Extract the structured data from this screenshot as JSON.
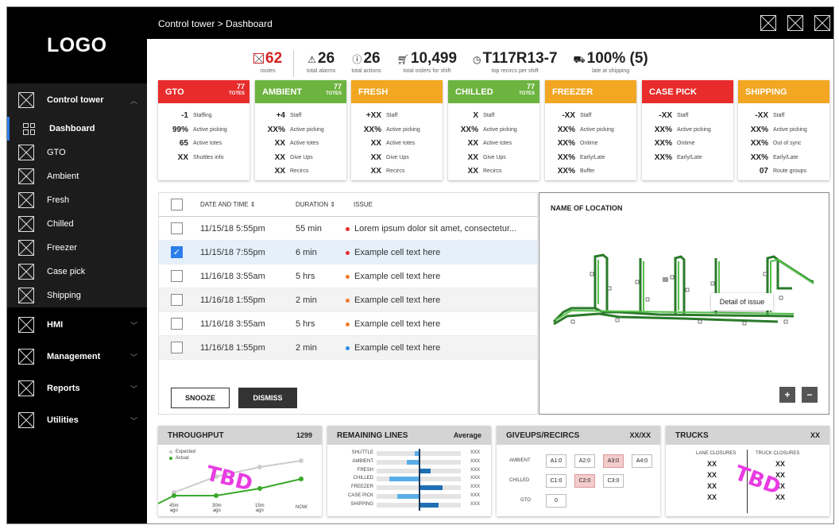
{
  "sidebar": {
    "logo": "LOGO",
    "group_label": "Control tower",
    "items": [
      {
        "label": "Dashboard",
        "icon": "dashboard-grid-icon"
      },
      {
        "label": "GTO"
      },
      {
        "label": "Ambient"
      },
      {
        "label": "Fresh"
      },
      {
        "label": "Chilled"
      },
      {
        "label": "Freezer"
      },
      {
        "label": "Case pick"
      },
      {
        "label": "Shipping"
      }
    ],
    "sections": [
      {
        "label": "HMI"
      },
      {
        "label": "Management"
      },
      {
        "label": "Reports"
      },
      {
        "label": "Utilities"
      }
    ]
  },
  "header": {
    "breadcrumb": "Control tower > Dashboard"
  },
  "kpis": [
    {
      "value": "62",
      "label": "routes",
      "icon": "x-box-icon",
      "color": "#d32222"
    },
    {
      "value": "26",
      "label": "total alarms",
      "icon": "warning-triangle-icon"
    },
    {
      "value": "26",
      "label": "total actions",
      "icon": "info-circle-icon"
    },
    {
      "value": "10,499",
      "label": "total orders for shift",
      "icon": "cart-icon"
    },
    {
      "value": "T117R13-7",
      "label": "top recircs per shift",
      "icon": "clock-icon"
    },
    {
      "value": "100% (5)",
      "label": "late at shipping",
      "icon": "truck-icon"
    }
  ],
  "cards": [
    {
      "title": "GTO",
      "color": "#e82c2c",
      "count": "77",
      "count_label": "TOTES",
      "rows": [
        [
          "-1",
          "Staffing"
        ],
        [
          "99%",
          "Active picking"
        ],
        [
          "65",
          "Active totes"
        ],
        [
          "XX",
          "Shuttles info"
        ]
      ]
    },
    {
      "title": "AMBIENT",
      "color": "#6cb33f",
      "count": "77",
      "count_label": "TOTES",
      "rows": [
        [
          "+4",
          "Staff"
        ],
        [
          "XX%",
          "Active picking"
        ],
        [
          "XX",
          "Active totes"
        ],
        [
          "XX",
          "Give Ups"
        ],
        [
          "XX",
          "Recircs"
        ]
      ]
    },
    {
      "title": "FRESH",
      "color": "#f2a622",
      "count": "",
      "count_label": "",
      "rows": [
        [
          "+XX",
          "Staff"
        ],
        [
          "XX%",
          "Active picking"
        ],
        [
          "XX",
          "Active totes"
        ],
        [
          "XX",
          "Give Ups"
        ],
        [
          "XX",
          "Recircs"
        ]
      ]
    },
    {
      "title": "CHILLED",
      "color": "#6cb33f",
      "count": "77",
      "count_label": "TOTES",
      "rows": [
        [
          "X",
          "Staff"
        ],
        [
          "XX%",
          "Active picking"
        ],
        [
          "XX",
          "Active totes"
        ],
        [
          "XX",
          "Give Ups"
        ],
        [
          "XX",
          "Recircs"
        ]
      ]
    },
    {
      "title": "FREEZER",
      "color": "#f2a622",
      "count": "",
      "count_label": "",
      "rows": [
        [
          "-XX",
          "Staff"
        ],
        [
          "XX%",
          "Active picking"
        ],
        [
          "XX%",
          "Ontime"
        ],
        [
          "XX%",
          "Early/Late"
        ],
        [
          "XX%",
          "Buffer"
        ]
      ]
    },
    {
      "title": "CASE PICK",
      "color": "#e82c2c",
      "count": "",
      "count_label": "",
      "rows": [
        [
          "-XX",
          "Staff"
        ],
        [
          "XX%",
          "Active picking"
        ],
        [
          "XX%",
          "Ontime"
        ],
        [
          "XX%",
          "Early/Late"
        ]
      ]
    },
    {
      "title": "SHIPPING",
      "color": "#f2a622",
      "count": "",
      "count_label": "",
      "rows": [
        [
          "-XX",
          "Staff"
        ],
        [
          "XX%",
          "Active picking"
        ],
        [
          "XX%",
          "Out of sync"
        ],
        [
          "XX%",
          "Early/Late"
        ],
        [
          "07",
          "Route groups"
        ]
      ]
    }
  ],
  "issues_table": {
    "columns": [
      "DATE AND TIME",
      "DURATION",
      "ISSUE"
    ],
    "rows": [
      {
        "date": "11/15/18 5:55pm",
        "duration": "55 min",
        "issue": "Lorem ipsum dolor sit amet, consectetur...",
        "severity_color": "#e82c2c",
        "checked": false
      },
      {
        "date": "11/15/18 7:55pm",
        "duration": "6 min",
        "issue": "Example cell text here",
        "severity_color": "#e82c2c",
        "checked": true
      },
      {
        "date": "11/16/18 3:55am",
        "duration": "5 hrs",
        "issue": "Example cell text here",
        "severity_color": "#f07a2a",
        "checked": false
      },
      {
        "date": "11/16/18 1:55pm",
        "duration": "2 min",
        "issue": "Example cell text here",
        "severity_color": "#f07a2a",
        "checked": false
      },
      {
        "date": "11/16/18 3:55am",
        "duration": "5 hrs",
        "issue": "Example cell text here",
        "severity_color": "#f07a2a",
        "checked": false
      },
      {
        "date": "11/16/18 1:55pm",
        "duration": "2 min",
        "issue": "Example cell text here",
        "severity_color": "#2b8be8",
        "checked": false
      }
    ],
    "snooze_label": "SNOOZE",
    "dismiss_label": "DISMISS"
  },
  "map": {
    "title": "NAME OF LOCATION",
    "tooltip": "Detail of issue",
    "zoom_in": "+",
    "zoom_out": "−"
  },
  "throughput": {
    "title": "THROUGHPUT",
    "value": "1299",
    "legend": [
      "Expected",
      "Actual"
    ],
    "x_labels": [
      [
        "45m",
        "ago"
      ],
      [
        "30m",
        "ago"
      ],
      [
        "15m",
        "ago"
      ],
      [
        "NOW",
        ""
      ]
    ],
    "placeholder": "TBD"
  },
  "remaining": {
    "title": "REMAINING LINES",
    "subtitle": "Average",
    "rows": [
      {
        "label": "SHUTTLE",
        "value": "XXX",
        "delta": -0.1
      },
      {
        "label": "AMBIENT",
        "value": "XXX",
        "delta": -0.3
      },
      {
        "label": "FRESH",
        "value": "XXX",
        "delta": 0.3
      },
      {
        "label": "CHILLED",
        "value": "XXX",
        "delta": -0.75
      },
      {
        "label": "FREEZER",
        "value": "XXX",
        "delta": 0.6
      },
      {
        "label": "CASE PICK",
        "value": "XXX",
        "delta": -0.55
      },
      {
        "label": "SHIPPING",
        "value": "XXX",
        "delta": 0.5
      }
    ]
  },
  "giveups": {
    "title": "GIVEUPS/RECIRCS",
    "value": "XX/XX",
    "rows": [
      {
        "label": "AMBIENT",
        "chips": [
          {
            "t": "A1:0",
            "hl": false
          },
          {
            "t": "A2:0",
            "hl": false
          },
          {
            "t": "A3:0",
            "hl": true
          },
          {
            "t": "A4:0",
            "hl": false
          }
        ]
      },
      {
        "label": "CHILLED",
        "chips": [
          {
            "t": "C1:0",
            "hl": false
          },
          {
            "t": "C2:0",
            "hl": true
          },
          {
            "t": "C3:0",
            "hl": false
          }
        ]
      },
      {
        "label": "GTO",
        "chips": [
          {
            "t": "0",
            "hl": false
          }
        ]
      }
    ]
  },
  "trucks": {
    "title": "TRUCKS",
    "value": "XX",
    "col1_label": "LANE CLOSURES",
    "col2_label": "TRUCK CLOSURES",
    "col1": [
      "XX",
      "XX",
      "XX",
      "XX"
    ],
    "col2": [
      "XX",
      "XX",
      "XX",
      "XX"
    ],
    "placeholder": "TBD"
  }
}
